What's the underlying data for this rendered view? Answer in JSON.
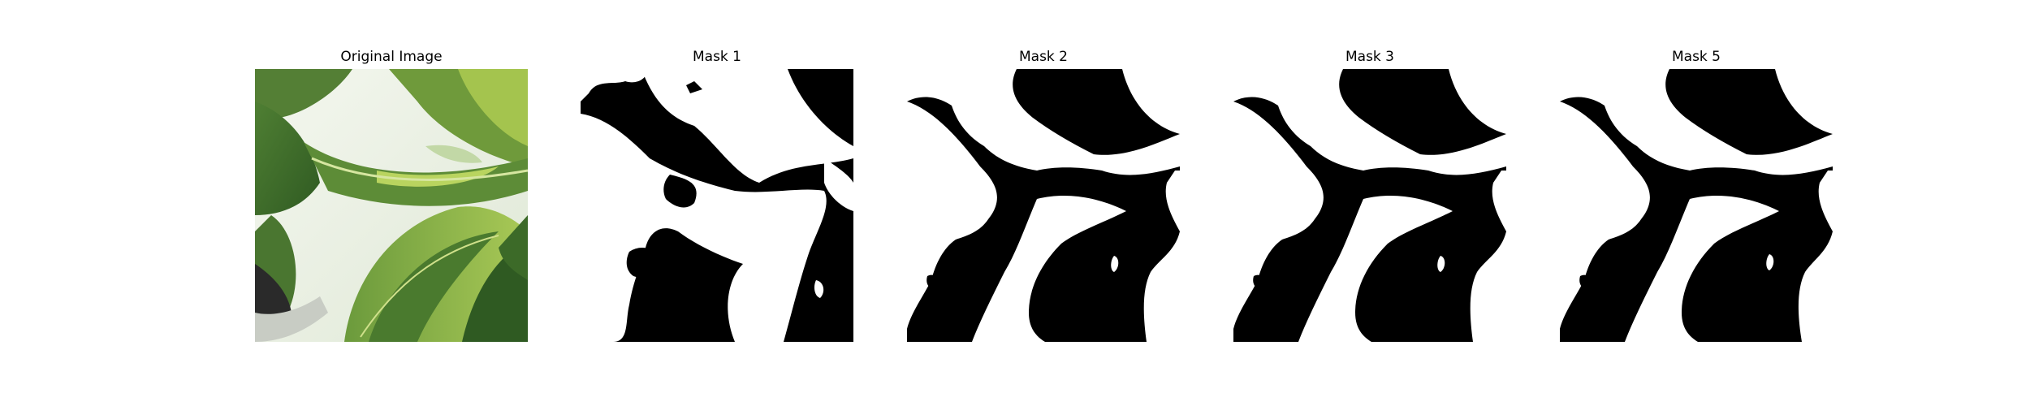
{
  "panels": [
    {
      "title": "Original Image",
      "kind": "photo"
    },
    {
      "title": "Mask 1",
      "kind": "mask"
    },
    {
      "title": "Mask 2",
      "kind": "mask"
    },
    {
      "title": "Mask 3",
      "kind": "mask"
    },
    {
      "title": "Mask 5",
      "kind": "mask"
    }
  ],
  "colors": {
    "background": "#ffffff",
    "mask_foreground": "#ffffff",
    "mask_background": "#000000",
    "leaf_dark": "#3f6b2c",
    "leaf_mid": "#5f8f3a",
    "leaf_light": "#9cc04f",
    "photo_background": "#e9efe4"
  }
}
